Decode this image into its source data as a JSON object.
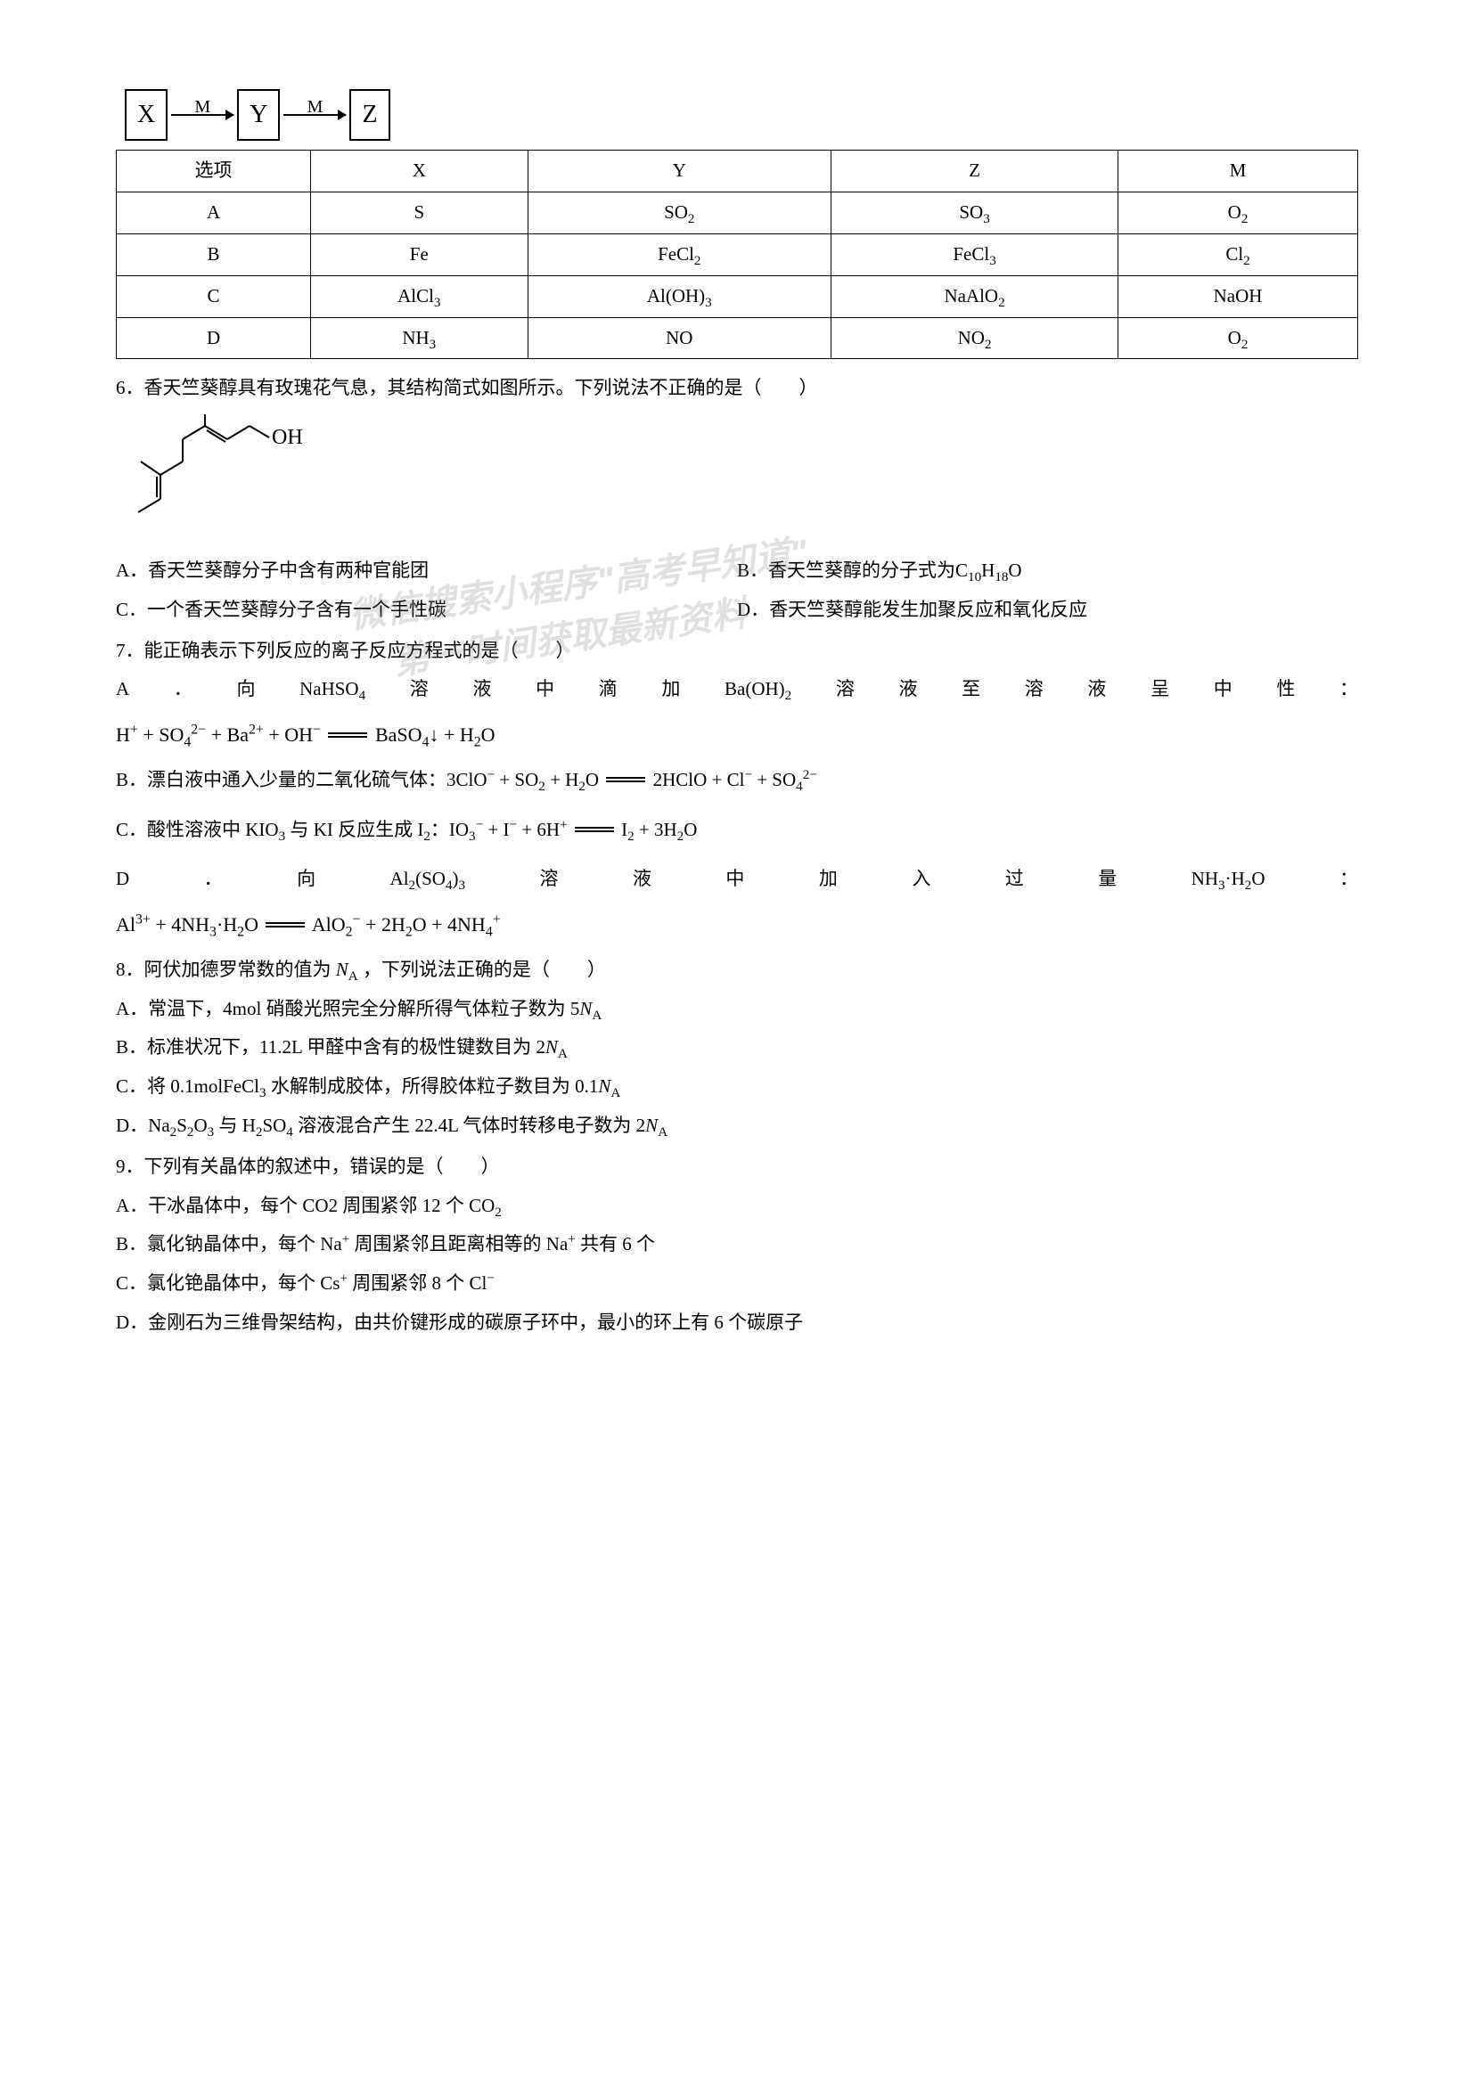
{
  "diagram": {
    "nodes": [
      "X",
      "Y",
      "Z"
    ],
    "edge_label": "M"
  },
  "table": {
    "headers": [
      "选项",
      "X",
      "Y",
      "Z",
      "M"
    ],
    "rows": [
      [
        "A",
        "S",
        "SO<sub>2</sub>",
        "SO<sub>3</sub>",
        "O<sub>2</sub>"
      ],
      [
        "B",
        "Fe",
        "FeCl<sub>2</sub>",
        "FeCl<sub>3</sub>",
        "Cl<sub>2</sub>"
      ],
      [
        "C",
        "AlCl<sub>3</sub>",
        "Al(OH)<sub>3</sub>",
        "NaAlO<sub>2</sub>",
        "NaOH"
      ],
      [
        "D",
        "NH<sub>3</sub>",
        "NO",
        "NO<sub>2</sub>",
        "O<sub>2</sub>"
      ]
    ]
  },
  "q6": {
    "stem": "6．香天竺葵醇具有玫瑰花气息，其结构简式如图所示。下列说法不正确的是（　　）",
    "molecule_label": "OH",
    "optA": "A．香天竺葵醇分子中含有两种官能团",
    "optB_prefix": "B．香天竺葵醇的分子式为",
    "optB_formula": "C<sub>10</sub>H<sub>18</sub>O",
    "optC": "C．一个香天竺葵醇分子含有一个手性碳",
    "optD": "D．香天竺葵醇能发生加聚反应和氧化反应"
  },
  "q7": {
    "stem": "7．能正确表示下列反应的离子反应方程式的是（　　）",
    "A_parts": [
      "A",
      "．",
      "向",
      "NaHSO<sub>4</sub>",
      "溶",
      "液",
      "中",
      "滴",
      "加",
      "Ba(OH)<sub>2</sub>",
      "溶",
      "液",
      "至",
      "溶",
      "液",
      "呈",
      "中",
      "性",
      "："
    ],
    "A_eq": "H<sup>+</sup> + SO<sub>4</sub><sup>2−</sup> + Ba<sup>2+</sup> + OH<sup>−</sup> <span class=\"long-eq\"></span> BaSO<sub>4</sub>↓ + H<sub>2</sub>O",
    "B_text": "B．漂白液中通入少量的二氧化硫气体：",
    "B_eq": "3ClO<sup>−</sup> + SO<sub>2</sub> + H<sub>2</sub>O <span class=\"long-eq\"></span> 2HClO + Cl<sup>−</sup> + SO<sub>4</sub><sup>2−</sup>",
    "C_text": "C．酸性溶液中 KIO<sub>3</sub> 与 KI 反应生成 I<sub>2</sub>：",
    "C_eq": "IO<sub>3</sub><sup>−</sup> + I<sup>−</sup> + 6H<sup>+</sup> <span class=\"long-eq\"></span> I<sub>2</sub> + 3H<sub>2</sub>O",
    "D_parts": [
      "D",
      "．",
      "向",
      "Al<sub>2</sub>(SO<sub>4</sub>)<sub>3</sub>",
      "溶",
      "液",
      "中",
      "加",
      "入",
      "过",
      "量",
      "NH<sub>3</sub>·H<sub>2</sub>O",
      "："
    ],
    "D_eq": "Al<sup>3+</sup> + 4NH<sub>3</sub>·H<sub>2</sub>O <span class=\"long-eq\"></span> AlO<sub>2</sub><sup>−</sup> + 2H<sub>2</sub>O + 4NH<sub>4</sub><sup>+</sup>"
  },
  "q8": {
    "stem_prefix": "8．阿伏加德罗常数的值为",
    "stem_suffix": "，下列说法正确的是（　　）",
    "NA": "<i>N</i><sub>A</sub>",
    "A": "A．常温下，4mol 硝酸光照完全分解所得气体粒子数为 5<i>N</i><sub>A</sub>",
    "B": "B．标准状况下，11.2L 甲醛中含有的极性键数目为 2<i>N</i><sub>A</sub>",
    "C": "C．将 0.1molFeCl<sub>3</sub> 水解制成胶体，所得胶体粒子数目为 0.1<i>N</i><sub>A</sub>",
    "D": "D．Na<sub>2</sub>S<sub>2</sub>O<sub>3</sub> 与 H<sub>2</sub>SO<sub>4</sub> 溶液混合产生 22.4L 气体时转移电子数为 2<i>N</i><sub>A</sub>"
  },
  "q9": {
    "stem": "9．下列有关晶体的叙述中，错误的是（　　）",
    "A": "A．干冰晶体中，每个 CO2 周围紧邻 12 个 CO<sub>2</sub>",
    "B": "B．氯化钠晶体中，每个 Na<sup>+</sup> 周围紧邻且距离相等的 Na<sup>+</sup> 共有 6 个",
    "C": "C．氯化铯晶体中，每个 Cs<sup>+</sup> 周围紧邻 8 个 Cl<sup>−</sup>",
    "D": "D．金刚石为三维骨架结构，由共价键形成的碳原子环中，最小的环上有 6 个碳原子"
  },
  "watermarks": {
    "w1": "微信搜索小程序\"高考早知道\"",
    "w2": "第一时间获取最新资料"
  }
}
